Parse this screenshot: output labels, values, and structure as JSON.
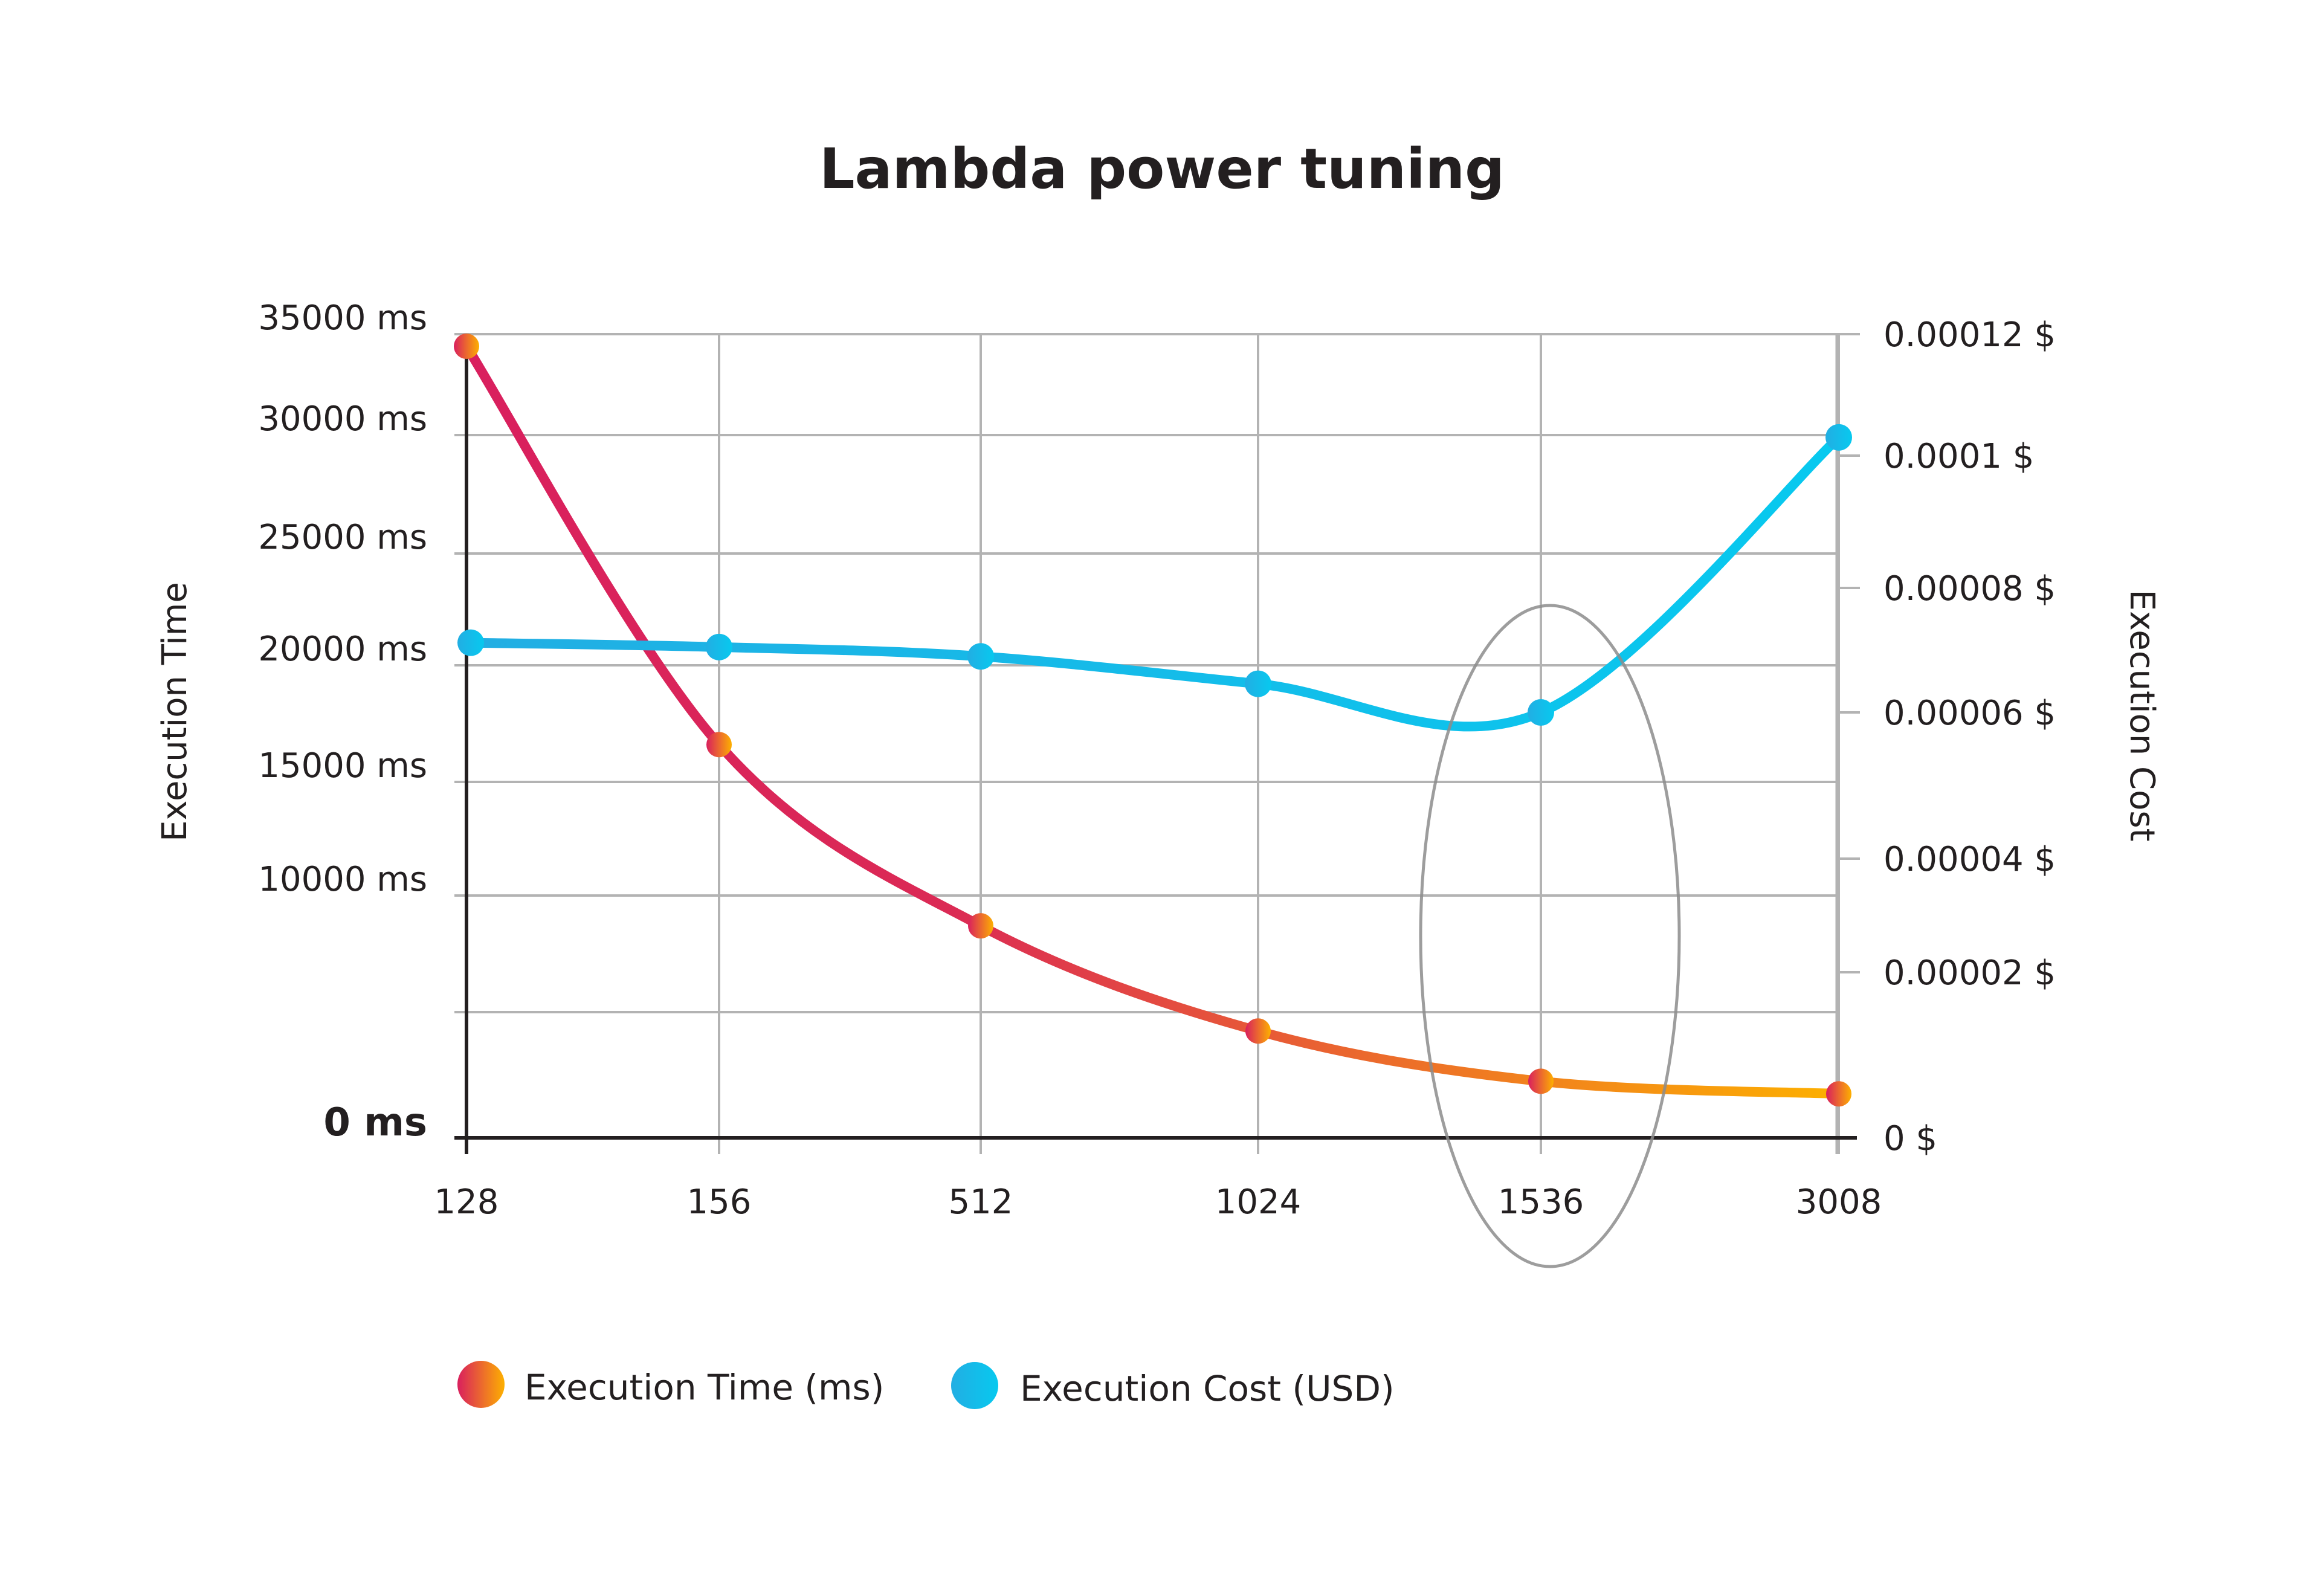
{
  "chart_data": {
    "type": "line",
    "title": "Lambda power tuning",
    "xlabel": "",
    "ylabel": "Execution Time",
    "y2label": "Execution Cost",
    "categories": [
      "128",
      "156",
      "512",
      "1024",
      "1536",
      "3008"
    ],
    "y_ticks": [
      "35000 ms",
      "30000 ms",
      "25000 ms",
      "20000 ms",
      "15000 ms",
      "10000 ms",
      "",
      "0 ms"
    ],
    "y_tick_values": [
      35000,
      30000,
      25000,
      20000,
      15000,
      10000,
      5000,
      0
    ],
    "y2_ticks": [
      "0.00012 $",
      "0.0001 $",
      "0.00008 $",
      "0.00006 $",
      "0.00004 $",
      "0.00002 $",
      "0 $"
    ],
    "y2_tick_values": [
      0.00012,
      0.0001,
      8e-05,
      6e-05,
      4e-05,
      2e-05,
      0
    ],
    "ylim": [
      0,
      35000
    ],
    "y2lim": [
      0,
      0.00012
    ],
    "grid": true,
    "legend_position": "bottom-left",
    "series": [
      {
        "name": "Execution Time (ms)",
        "axis": "left",
        "values": [
          34400,
          16600,
          8700,
          4250,
          2250,
          1750
        ],
        "color_start": "#D91F5E",
        "color_end": "#FDB000"
      },
      {
        "name": "Execution Cost (USD)",
        "axis": "right",
        "values": [
          7.12e-05,
          7.05e-05,
          6.9e-05,
          6.46e-05,
          6e-05,
          0.000103
        ],
        "color_start": "#22AEE3",
        "color_end": "#07C9EF"
      }
    ],
    "annotations": [
      {
        "type": "ellipse-highlight",
        "category": "1536",
        "color": "#8c8c8c"
      }
    ]
  }
}
